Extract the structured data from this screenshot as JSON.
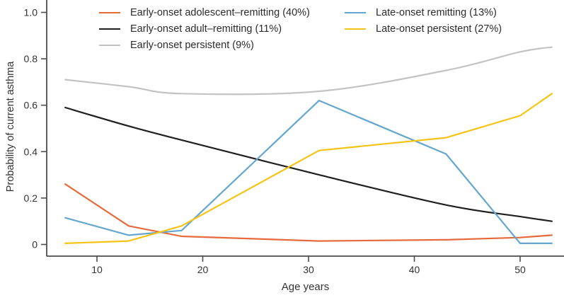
{
  "chart_data": {
    "type": "line",
    "title": "",
    "xlabel": "Age years",
    "ylabel": "Probability of current asthma",
    "x": [
      7,
      13,
      18,
      31,
      43,
      50,
      53
    ],
    "xticks": [
      10,
      20,
      30,
      40,
      50
    ],
    "yticks": [
      {
        "value": 0.0,
        "label": "0"
      },
      {
        "value": 0.2,
        "label": "0.2"
      },
      {
        "value": 0.4,
        "label": "0.4"
      },
      {
        "value": 0.6,
        "label": "0.6"
      },
      {
        "value": 0.8,
        "label": "0.8"
      },
      {
        "value": 1.0,
        "label": "1.0"
      }
    ],
    "xlim": [
      5.2,
      54
    ],
    "ylim": [
      0,
      1.0
    ],
    "grid": false,
    "legend_position": "top",
    "series": [
      {
        "name": "Early-onset adolescent–remitting (40%)",
        "color": "#E66A3C",
        "smooth": false,
        "values": [
          0.26,
          0.08,
          0.035,
          0.015,
          0.02,
          0.03,
          0.04
        ]
      },
      {
        "name": "Early-onset adult–remitting (11%)",
        "color": "#1F1F1F",
        "smooth": true,
        "values": [
          0.59,
          0.51,
          0.45,
          0.3,
          0.17,
          0.12,
          0.1
        ]
      },
      {
        "name": "Early-onset persistent (9%)",
        "color": "#C3C3C3",
        "smooth": true,
        "values": [
          0.71,
          0.68,
          0.65,
          0.66,
          0.75,
          0.83,
          0.85
        ]
      },
      {
        "name": "Late-onset remitting (13%)",
        "color": "#65A6CF",
        "smooth": false,
        "values": [
          0.115,
          0.04,
          0.06,
          0.62,
          0.39,
          0.005,
          0.005
        ]
      },
      {
        "name": "Late-onset persistent (27%)",
        "color": "#F5C314",
        "smooth": false,
        "values": [
          0.005,
          0.015,
          0.08,
          0.405,
          0.46,
          0.555,
          0.65
        ]
      }
    ],
    "legend_columns": [
      [
        0,
        1,
        2
      ],
      [
        3,
        4
      ]
    ],
    "draw_order": [
      2,
      1,
      0,
      3,
      4
    ]
  },
  "axes": {
    "spine_color": "#4d4d4d",
    "tick_color": "#4d4d4d",
    "text_color": "#333333"
  }
}
